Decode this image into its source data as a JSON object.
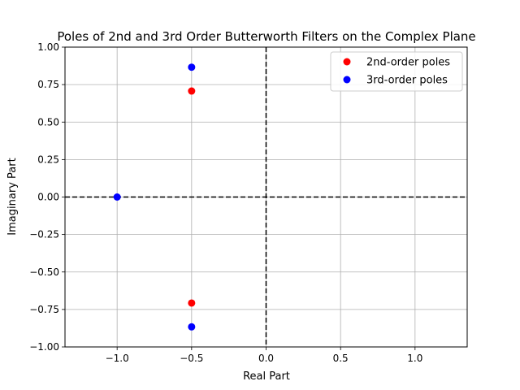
{
  "chart_data": {
    "type": "scatter",
    "title": "Poles of 2nd and 3rd Order Butterworth Filters on the Complex Plane",
    "xlabel": "Real Part",
    "ylabel": "Imaginary Part",
    "xlim": [
      -1.35,
      1.35
    ],
    "ylim": [
      -1.0,
      1.0
    ],
    "xticks": [
      -1.0,
      -0.5,
      0.0,
      0.5,
      1.0
    ],
    "xtick_labels": [
      "−1.0",
      "−0.5",
      "0.0",
      "0.5",
      "1.0"
    ],
    "yticks": [
      -1.0,
      -0.75,
      -0.5,
      -0.25,
      0.0,
      0.25,
      0.5,
      0.75,
      1.0
    ],
    "ytick_labels": [
      "−1.00",
      "−0.75",
      "−0.50",
      "−0.25",
      "0.00",
      "0.25",
      "0.50",
      "0.75",
      "1.00"
    ],
    "grid": true,
    "reference_lines": {
      "x": 0,
      "y": 0,
      "style": "dashed",
      "color": "#000000"
    },
    "legend_position": "top-right",
    "series": [
      {
        "name": "2nd-order poles",
        "color": "#ff0000",
        "points": [
          [
            -0.5,
            0.707
          ],
          [
            -0.5,
            -0.707
          ]
        ]
      },
      {
        "name": "3rd-order poles",
        "color": "#0000ff",
        "points": [
          [
            -0.5,
            0.866
          ],
          [
            -1.0,
            0.0
          ],
          [
            -0.5,
            -0.866
          ]
        ]
      }
    ]
  }
}
